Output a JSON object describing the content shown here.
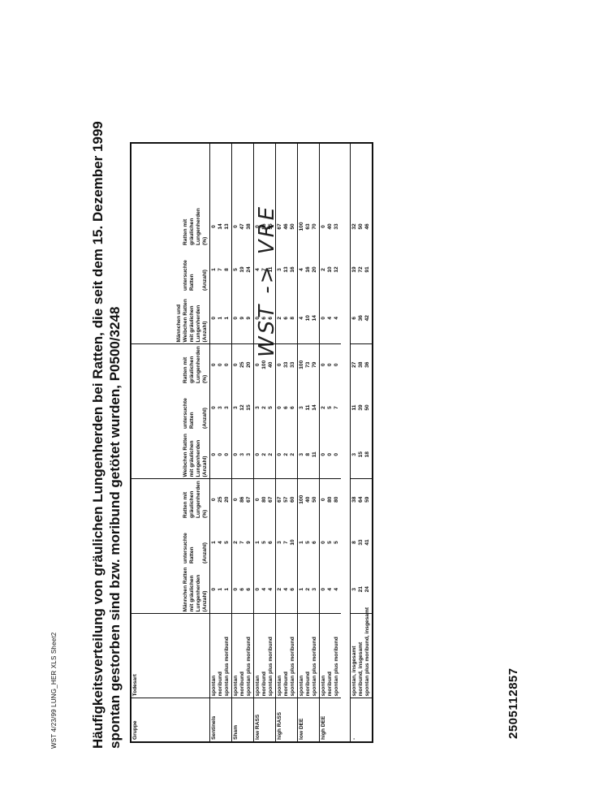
{
  "header_note": "WST 4/23/99 LUNG_HER XLS Sheet2",
  "title_line1": "Häufigkeitsverteilung von gräulichen Lungenherden bei Ratten, die seit dem 15. Dezember 1999",
  "title_line2": "spontan gestorben sind bzw. moribund getötet wurden, P0500/3248",
  "handwritten_note": "WST -> VRE",
  "document_number": "2505112857",
  "table": {
    "headers": {
      "gruppe": "Gruppe",
      "todesart": "Todesart",
      "maenn_rats": "Männchen Ratten mit gräulichen Lungenherden (Anzahl)",
      "maenn_unt": "untersuchte Ratten",
      "maenn_unt_sub": "(Anzahl)",
      "maenn_pct": "Ratten mit gräulichen Lungenherden (%)",
      "weib_rats": "Weibchen Ratten mit gräulichen Lungenherden (Anzahl)",
      "weib_unt": "untersuchte Ratten",
      "weib_unt_sub": "(Anzahl)",
      "weib_pct": "Ratten mit gräulichen Lungenherden (%)",
      "mw_rats": "Männchen und Weibchen Ratten mit gräulichen Lungenherden (Anzahl)",
      "mw_unt": "untersuchte Ratten",
      "mw_unt_sub": "(Anzahl)",
      "mw_pct": "Ratten mit gräulichen Lungenherden (%)"
    },
    "groups": [
      {
        "name": "Sentinels",
        "todesart": [
          "spontan",
          "moribund",
          "spontan plus moribund"
        ],
        "m_rats": [
          "0",
          "1",
          "1"
        ],
        "m_unt": [
          "1",
          "4",
          "5"
        ],
        "m_pct": [
          "0",
          "25",
          "20"
        ],
        "w_rats": [
          "0",
          "0",
          "0"
        ],
        "w_unt": [
          "0",
          "3",
          "3"
        ],
        "w_pct": [
          "0",
          "0",
          "0"
        ],
        "mw_rats": [
          "0",
          "1",
          "1"
        ],
        "mw_unt": [
          "1",
          "7",
          "8"
        ],
        "mw_pct": [
          "0",
          "14",
          "13"
        ]
      },
      {
        "name": "Sham",
        "todesart": [
          "spontan",
          "moribund",
          "spontan plus moribund"
        ],
        "m_rats": [
          "0",
          "6",
          "6"
        ],
        "m_unt": [
          "2",
          "7",
          "9"
        ],
        "m_pct": [
          "0",
          "86",
          "67"
        ],
        "w_rats": [
          "0",
          "3",
          "3"
        ],
        "w_unt": [
          "3",
          "12",
          "15"
        ],
        "w_pct": [
          "0",
          "25",
          "20"
        ],
        "mw_rats": [
          "0",
          "9",
          "9"
        ],
        "mw_unt": [
          "5",
          "19",
          "24"
        ],
        "mw_pct": [
          "0",
          "47",
          "38"
        ]
      },
      {
        "name": "low RASS",
        "todesart": [
          "spontan",
          "moribund",
          "spontan plus moribund"
        ],
        "m_rats": [
          "0",
          "4",
          "4"
        ],
        "m_unt": [
          "1",
          "5",
          "6"
        ],
        "m_pct": [
          "0",
          "80",
          "67"
        ],
        "w_rats": [
          "0",
          "2",
          "2"
        ],
        "w_unt": [
          "3",
          "2",
          "5"
        ],
        "w_pct": [
          "0",
          "100",
          "40"
        ],
        "mw_rats": [
          "0",
          "6",
          "6"
        ],
        "mw_unt": [
          "4",
          "7",
          "11"
        ],
        "mw_pct": [
          "0",
          "86",
          "55"
        ]
      },
      {
        "name": "high RASS",
        "todesart": [
          "spontan",
          "moribund",
          "spontan plus moribund"
        ],
        "m_rats": [
          "2",
          "4",
          "6"
        ],
        "m_unt": [
          "3",
          "7",
          "10"
        ],
        "m_pct": [
          "67",
          "57",
          "60"
        ],
        "w_rats": [
          "0",
          "2",
          "2"
        ],
        "w_unt": [
          "0",
          "6",
          "6"
        ],
        "w_pct": [
          "0",
          "33",
          "33"
        ],
        "mw_rats": [
          "2",
          "6",
          "8"
        ],
        "mw_unt": [
          "3",
          "13",
          "16"
        ],
        "mw_pct": [
          "67",
          "46",
          "50"
        ]
      },
      {
        "name": "low DEE",
        "todesart": [
          "spontan",
          "moribund",
          "spontan plus moribund"
        ],
        "m_rats": [
          "1",
          "2",
          "3"
        ],
        "m_unt": [
          "1",
          "5",
          "6"
        ],
        "m_pct": [
          "100",
          "40",
          "50"
        ],
        "w_rats": [
          "3",
          "8",
          "11"
        ],
        "w_unt": [
          "3",
          "11",
          "14"
        ],
        "w_pct": [
          "100",
          "73",
          "79"
        ],
        "mw_rats": [
          "4",
          "10",
          "14"
        ],
        "mw_unt": [
          "4",
          "16",
          "20"
        ],
        "mw_pct": [
          "100",
          "63",
          "70"
        ]
      },
      {
        "name": "high DEE",
        "todesart": [
          "spontan",
          "moribund",
          "spontan plus moribund"
        ],
        "m_rats": [
          "0",
          "4",
          "4"
        ],
        "m_unt": [
          "0",
          "5",
          "5"
        ],
        "m_pct": [
          "0",
          "80",
          "80"
        ],
        "w_rats": [
          "0",
          "0",
          "0"
        ],
        "w_unt": [
          "2",
          "5",
          "7"
        ],
        "w_pct": [
          "0",
          "0",
          "0"
        ],
        "mw_rats": [
          "0",
          "4",
          "4"
        ],
        "mw_unt": [
          "2",
          "10",
          "12"
        ],
        "mw_pct": [
          "0",
          "40",
          "33"
        ]
      },
      {
        "name": "-",
        "todesart": [
          "spontan, insgesamt",
          "moribund, insgesamt",
          "spontan plus moribund, insgesamt"
        ],
        "m_rats": [
          "3",
          "21",
          "24"
        ],
        "m_unt": [
          "8",
          "33",
          "41"
        ],
        "m_pct": [
          "38",
          "64",
          "59"
        ],
        "w_rats": [
          "3",
          "15",
          "18"
        ],
        "w_unt": [
          "11",
          "39",
          "50"
        ],
        "w_pct": [
          "27",
          "38",
          "36"
        ],
        "mw_rats": [
          "6",
          "36",
          "42"
        ],
        "mw_unt": [
          "19",
          "72",
          "91"
        ],
        "mw_pct": [
          "32",
          "50",
          "46"
        ]
      }
    ]
  }
}
